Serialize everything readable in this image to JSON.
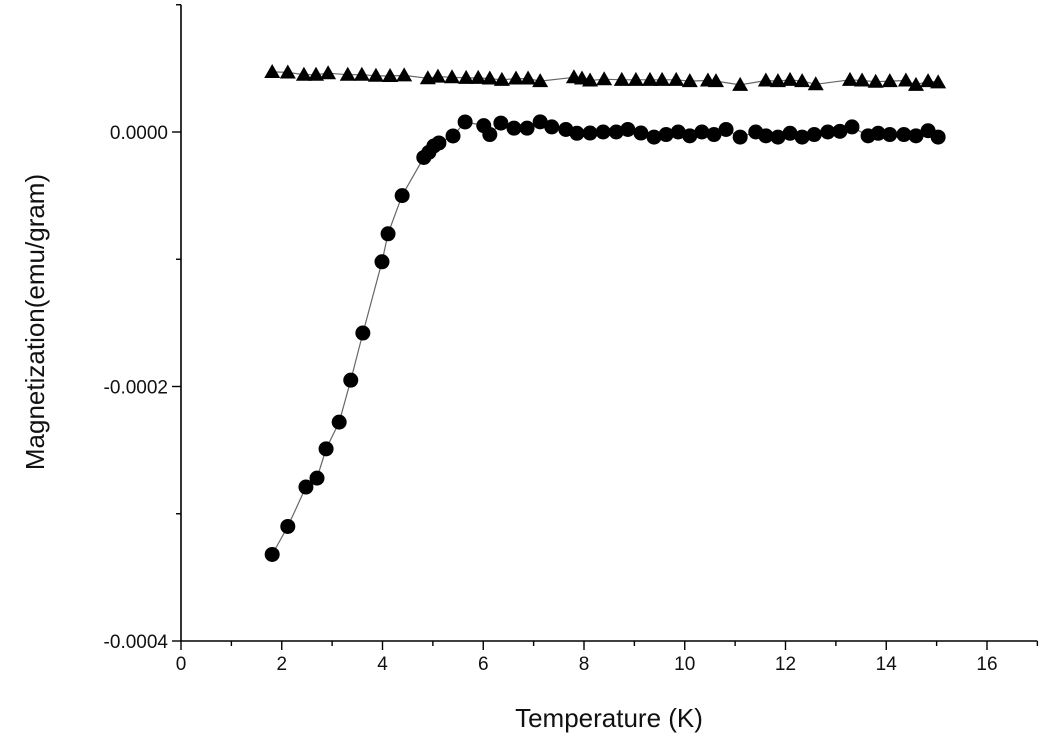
{
  "chart_data": {
    "type": "scatter",
    "title": "",
    "xlabel": "Temperature (K)",
    "ylabel": "Magnetization(emu/gram)",
    "xlim": [
      0,
      17
    ],
    "ylim": [
      -0.0004,
      0.0001
    ],
    "x_ticks": [
      "0",
      "2",
      "4",
      "6",
      "8",
      "10",
      "12",
      "14",
      "16"
    ],
    "x_tick_values": [
      0,
      2,
      4,
      6,
      8,
      10,
      12,
      14,
      16
    ],
    "y_ticks": [
      "0.0000",
      "-0.0002",
      "-0.0004"
    ],
    "y_tick_values": [
      0,
      -0.0002,
      -0.0004
    ],
    "grid": false,
    "series": [
      {
        "marker": "triangle",
        "color": "#000000",
        "x": [
          1.81,
          2.12,
          2.44,
          2.68,
          2.92,
          3.31,
          3.59,
          3.87,
          4.15,
          4.43,
          4.9,
          5.1,
          5.38,
          5.66,
          5.9,
          6.13,
          6.37,
          6.65,
          6.89,
          7.13,
          7.8,
          7.96,
          8.12,
          8.4,
          8.75,
          9.03,
          9.31,
          9.55,
          9.83,
          10.1,
          10.46,
          10.62,
          11.1,
          11.61,
          11.85,
          12.09,
          12.33,
          12.6,
          13.28,
          13.52,
          13.79,
          14.07,
          14.39,
          14.59,
          14.83,
          15.03
        ],
        "y": [
          4.72e-05,
          4.68e-05,
          4.5e-05,
          4.5e-05,
          4.62e-05,
          4.5e-05,
          4.5e-05,
          4.42e-05,
          4.4e-05,
          4.45e-05,
          4.22e-05,
          4.35e-05,
          4.3e-05,
          4.25e-05,
          4.25e-05,
          4.2e-05,
          4.1e-05,
          4.2e-05,
          4.2e-05,
          4e-05,
          4.3e-05,
          4.2e-05,
          4.05e-05,
          4.15e-05,
          4.1e-05,
          4.1e-05,
          4.1e-05,
          4.1e-05,
          4.1e-05,
          4e-05,
          4.05e-05,
          4e-05,
          3.7e-05,
          4.05e-05,
          4e-05,
          4.1e-05,
          4e-05,
          3.75e-05,
          4.1e-05,
          4.05e-05,
          3.95e-05,
          4e-05,
          4.05e-05,
          3.7e-05,
          4e-05,
          3.9e-05
        ]
      },
      {
        "marker": "circle",
        "color": "#000000",
        "x": [
          1.81,
          2.12,
          2.48,
          2.7,
          2.88,
          3.14,
          3.37,
          3.61,
          3.99,
          4.11,
          4.39,
          4.82,
          4.92,
          5.02,
          5.12,
          5.4,
          5.64,
          6.01,
          6.13,
          6.35,
          6.61,
          6.87,
          7.13,
          7.36,
          7.64,
          7.86,
          8.12,
          8.38,
          8.64,
          8.87,
          9.13,
          9.39,
          9.63,
          9.87,
          10.1,
          10.34,
          10.58,
          10.82,
          11.1,
          11.41,
          11.61,
          11.85,
          12.09,
          12.33,
          12.57,
          12.84,
          13.08,
          13.32,
          13.64,
          13.84,
          14.07,
          14.35,
          14.59,
          14.83,
          15.03
        ],
        "y": [
          -0.000332,
          -0.00031,
          -0.000279,
          -0.000272,
          -0.000249,
          -0.000228,
          -0.000195,
          -0.000158,
          -0.000102,
          -8e-05,
          -5e-05,
          -2e-05,
          -1.6e-05,
          -1.1e-05,
          -8.6e-06,
          -3.1e-06,
          7.9e-06,
          5e-06,
          -2e-06,
          7e-06,
          3e-06,
          3e-06,
          8e-06,
          4e-06,
          2e-06,
          -1e-06,
          -8e-07,
          0,
          0,
          2e-06,
          -8e-07,
          -4e-06,
          -2e-06,
          0,
          -3e-06,
          0,
          -2e-06,
          2e-06,
          -4e-06,
          0,
          -3e-06,
          -4e-06,
          -1e-06,
          -4e-06,
          -2e-06,
          0,
          5e-07,
          4e-06,
          -3e-06,
          -1e-06,
          -2e-06,
          -2e-06,
          -3e-06,
          1e-06,
          -4e-06
        ]
      }
    ]
  }
}
